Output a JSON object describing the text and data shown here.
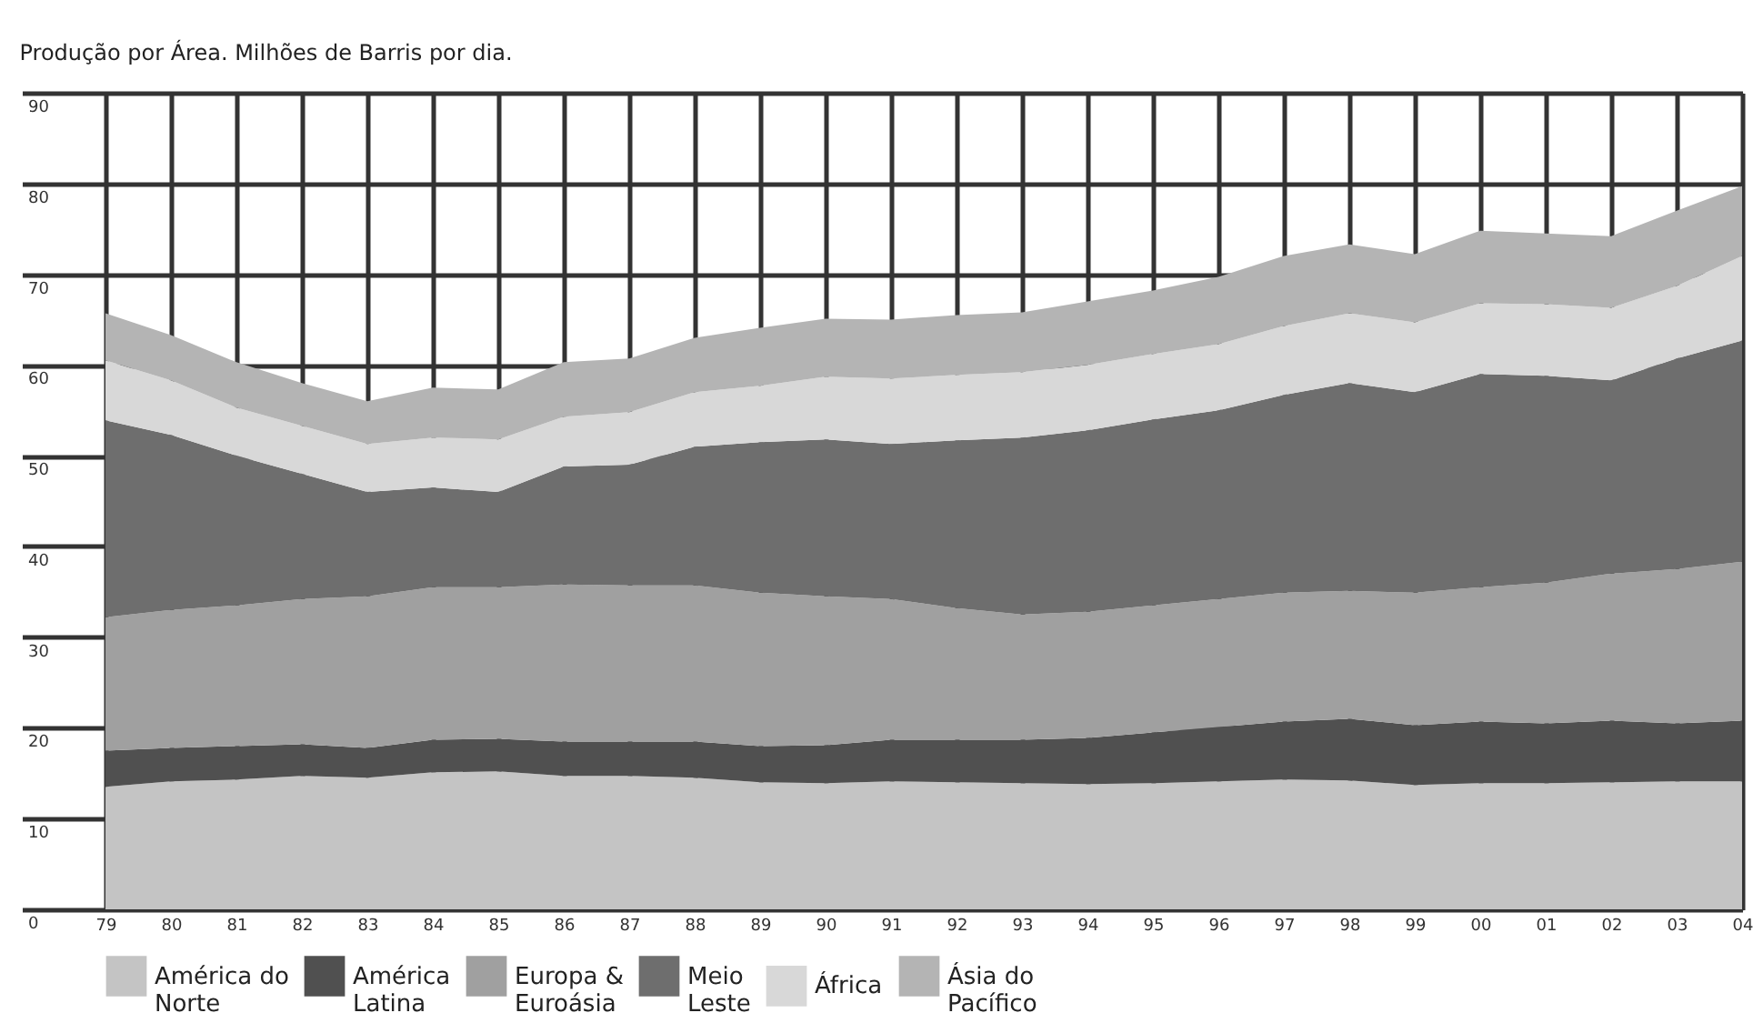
{
  "chart_data": {
    "type": "area",
    "stacked": true,
    "title": "Produção por Área. Milhões de Barris por dia.",
    "categories": [
      "79",
      "80",
      "81",
      "82",
      "83",
      "84",
      "85",
      "86",
      "87",
      "88",
      "89",
      "90",
      "91",
      "92",
      "93",
      "94",
      "95",
      "96",
      "97",
      "98",
      "99",
      "00",
      "01",
      "02",
      "03",
      "04"
    ],
    "series": [
      {
        "name": "América do Norte",
        "color": "#c4c4c4",
        "values": [
          13.5,
          14.1,
          14.3,
          14.7,
          14.5,
          15.1,
          15.2,
          14.7,
          14.7,
          14.5,
          14.0,
          13.9,
          14.1,
          14.0,
          13.9,
          13.8,
          13.9,
          14.1,
          14.3,
          14.2,
          13.7,
          13.9,
          13.9,
          14.0,
          14.1,
          14.1
        ]
      },
      {
        "name": "América Latina",
        "color": "#505050",
        "values": [
          4.0,
          3.7,
          3.7,
          3.5,
          3.3,
          3.6,
          3.6,
          3.8,
          3.8,
          4.0,
          4.0,
          4.2,
          4.6,
          4.7,
          4.8,
          5.1,
          5.6,
          6.0,
          6.4,
          6.8,
          6.6,
          6.8,
          6.6,
          6.8,
          6.4,
          6.7
        ]
      },
      {
        "name": "Europa & Euroásia",
        "color": "#a0a0a0",
        "values": [
          14.7,
          15.2,
          15.5,
          16.0,
          16.7,
          16.8,
          16.7,
          17.3,
          17.2,
          17.2,
          16.9,
          16.4,
          15.5,
          14.5,
          13.8,
          13.9,
          14.0,
          14.1,
          14.2,
          14.1,
          14.6,
          14.8,
          15.5,
          16.2,
          17.0,
          17.5
        ]
      },
      {
        "name": "Meio Leste",
        "color": "#6e6e6e",
        "values": [
          21.7,
          19.3,
          16.5,
          13.8,
          11.5,
          11.0,
          10.5,
          13.0,
          13.3,
          15.3,
          16.6,
          17.3,
          17.1,
          18.5,
          19.5,
          20.0,
          20.5,
          20.8,
          21.8,
          22.9,
          22.1,
          23.5,
          22.8,
          21.3,
          23.2,
          24.4
        ]
      },
      {
        "name": "África",
        "color": "#d8d8d8",
        "values": [
          6.6,
          6.0,
          5.3,
          5.3,
          5.3,
          5.5,
          5.8,
          5.5,
          5.8,
          6.0,
          6.2,
          6.9,
          7.2,
          7.2,
          7.2,
          7.2,
          7.2,
          7.3,
          7.6,
          7.7,
          7.7,
          7.8,
          7.9,
          8.0,
          8.0,
          9.3
        ]
      },
      {
        "name": "Ásia do Pacífico",
        "color": "#b4b4b4",
        "values": [
          5.2,
          5.0,
          5.0,
          4.7,
          4.7,
          5.5,
          5.5,
          6.0,
          5.9,
          6.0,
          6.4,
          6.4,
          6.5,
          6.6,
          6.6,
          7.0,
          7.0,
          7.4,
          7.7,
          7.6,
          7.5,
          8.0,
          7.8,
          7.9,
          8.3,
          7.7
        ]
      }
    ],
    "ylim": [
      0,
      90
    ],
    "yticks": [
      0,
      10,
      20,
      30,
      40,
      50,
      60,
      70,
      80,
      90
    ],
    "grid": true,
    "legend": "bottom"
  }
}
